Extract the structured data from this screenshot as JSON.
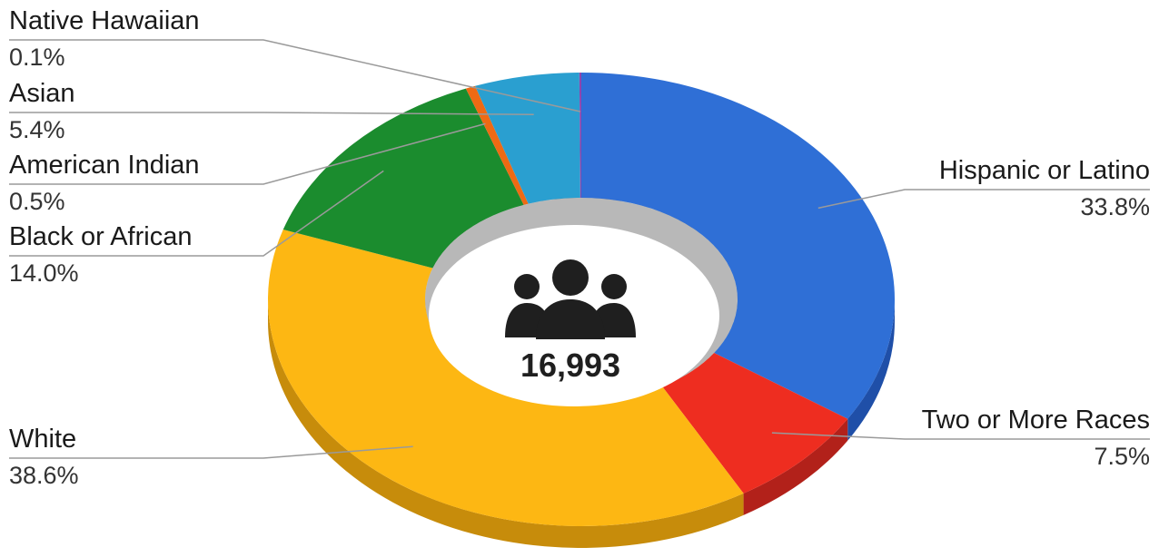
{
  "chart_data": {
    "type": "pie",
    "style": "3d-donut",
    "center_label": "16,993",
    "center_icon": "people-group-icon",
    "slices": [
      {
        "label": "Hispanic or Latino",
        "value_text": "33.8%",
        "value": 33.8,
        "color": "#2f6fd6",
        "side_color": "#1f4fa8"
      },
      {
        "label": "Two or More Races",
        "value_text": "7.5%",
        "value": 7.5,
        "color": "#ee2d20",
        "side_color": "#b2211a"
      },
      {
        "label": "White",
        "value_text": "38.6%",
        "value": 38.6,
        "color": "#fdb713",
        "side_color": "#c78c0b"
      },
      {
        "label": "Black or African",
        "value_text": "14.0%",
        "value": 14.0,
        "color": "#1b8c2e",
        "side_color": "#136a22"
      },
      {
        "label": "American Indian",
        "value_text": "0.5%",
        "value": 0.5,
        "color": "#ee6a14",
        "side_color": "#b3500f"
      },
      {
        "label": "Asian",
        "value_text": "5.4%",
        "value": 5.4,
        "color": "#2a9fd0",
        "side_color": "#1f7aa0"
      },
      {
        "label": "Native Hawaiian",
        "value_text": "0.1%",
        "value": 0.1,
        "color": "#8e44ad",
        "side_color": "#6c3483"
      }
    ]
  }
}
